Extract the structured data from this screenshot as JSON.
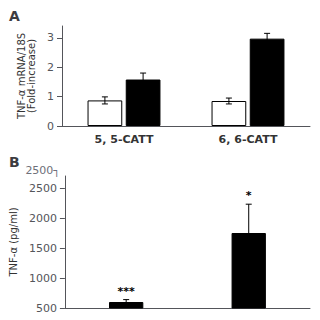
{
  "chart_data": [
    {
      "type": "bar",
      "title": "A",
      "categories": [
        "5, 5-CATT",
        "6, 6-CATT"
      ],
      "series": [
        {
          "color": "white",
          "values": [
            0.87,
            0.85
          ],
          "errors": [
            0.12,
            0.1
          ]
        },
        {
          "color": "black",
          "values": [
            1.58,
            2.97
          ],
          "errors": [
            0.22,
            0.18
          ]
        }
      ],
      "ylabel": "TNF-α mRNA/18S\n(Fold-increase)",
      "ylim": [
        0,
        3.4
      ],
      "yticks": [
        0,
        1,
        2,
        3
      ],
      "grid": false
    },
    {
      "type": "bar",
      "title": "B",
      "categories": [
        null,
        null
      ],
      "values": [
        600,
        1750
      ],
      "errors": [
        40,
        480
      ],
      "color": "black",
      "ylabel": "TNF-α (pg/ml)",
      "ylim": [
        500,
        2700
      ],
      "yticks": [
        500,
        1000,
        1500,
        2000,
        2500
      ],
      "tick_labels": "y",
      "grid": false,
      "annotations": [
        {
          "text": "***",
          "index": 0
        },
        {
          "text": "*",
          "index": 1
        },
        {
          "text": "2500┐"
        }
      ]
    }
  ]
}
